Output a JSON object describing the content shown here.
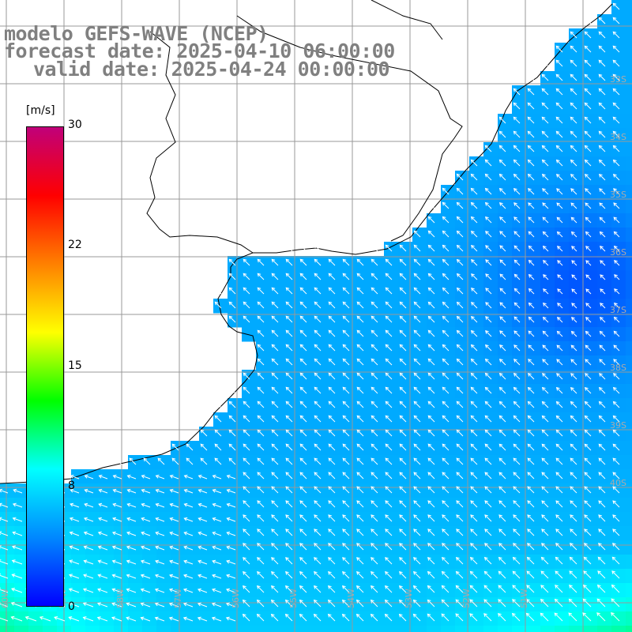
{
  "title": {
    "line1": "modelo GEFS-WAVE (NCEP)",
    "line2": "forecast date: 2025-04-10 06:00:00",
    "line3": "valid date: 2025-04-24 00:00:00"
  },
  "colorbar": {
    "unit": "[m/s]",
    "ticks": [
      "30",
      "22",
      "15",
      "8",
      "0"
    ],
    "range": [
      0,
      30
    ],
    "stops": [
      "#0000ff",
      "#0088ff",
      "#00ffff",
      "#00ff00",
      "#ffff00",
      "#ff8000",
      "#ff0000",
      "#c0007a"
    ]
  },
  "map": {
    "lat_labels": [
      "33S",
      "34S",
      "35S",
      "36S",
      "37S",
      "38S",
      "39S",
      "40S"
    ],
    "lon_labels": [
      "60W",
      "59W",
      "58W",
      "57W",
      "56W",
      "55W",
      "54W",
      "53W",
      "52W",
      "51W"
    ],
    "colors": {
      "land": "#ffffff",
      "grid": "#999999",
      "coast": "#000000",
      "arrow": "#ffffff",
      "label": "#aaaaaa"
    },
    "wind_direction": "from south-east (arrows point north-west)"
  }
}
